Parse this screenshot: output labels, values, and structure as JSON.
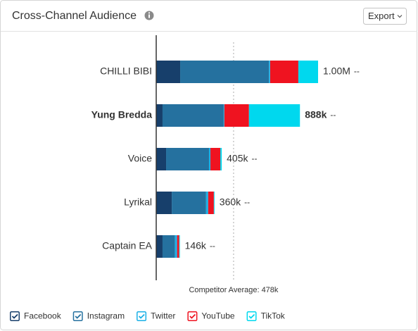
{
  "chart_data": {
    "type": "stacked-bar-horizontal",
    "title": "Cross-Channel Audience",
    "export_label": "Export",
    "categories": [
      "CHILLI BIBI",
      "Yung Bredda",
      "Voice",
      "Lyrikal",
      "Captain EA"
    ],
    "highlight": 1,
    "series": [
      {
        "name": "Facebook",
        "color": "#173f6b",
        "values": [
          148000,
          39000,
          61000,
          96000,
          39000
        ]
      },
      {
        "name": "Instagram",
        "color": "#25719f",
        "values": [
          548000,
          378000,
          265000,
          212000,
          77000
        ]
      },
      {
        "name": "Twitter",
        "color": "#1ab0e6",
        "values": [
          8000,
          4000,
          9000,
          13000,
          13000
        ]
      },
      {
        "name": "YouTube",
        "color": "#ef1320",
        "values": [
          174000,
          152000,
          61000,
          35000,
          13000
        ]
      },
      {
        "name": "TikTok",
        "color": "#00d8ee",
        "values": [
          122000,
          315000,
          9000,
          4000,
          4000
        ]
      }
    ],
    "totals": [
      1000000,
      888000,
      405000,
      360000,
      146000
    ],
    "total_labels": [
      "1.00M",
      "888k",
      "405k",
      "360k",
      "146k"
    ],
    "trend_labels": [
      "--",
      "--",
      "--",
      "--",
      "--"
    ],
    "reference": {
      "value": 478000,
      "label": "Competitor Average: 478k"
    },
    "xlim": [
      0,
      1600000
    ]
  }
}
